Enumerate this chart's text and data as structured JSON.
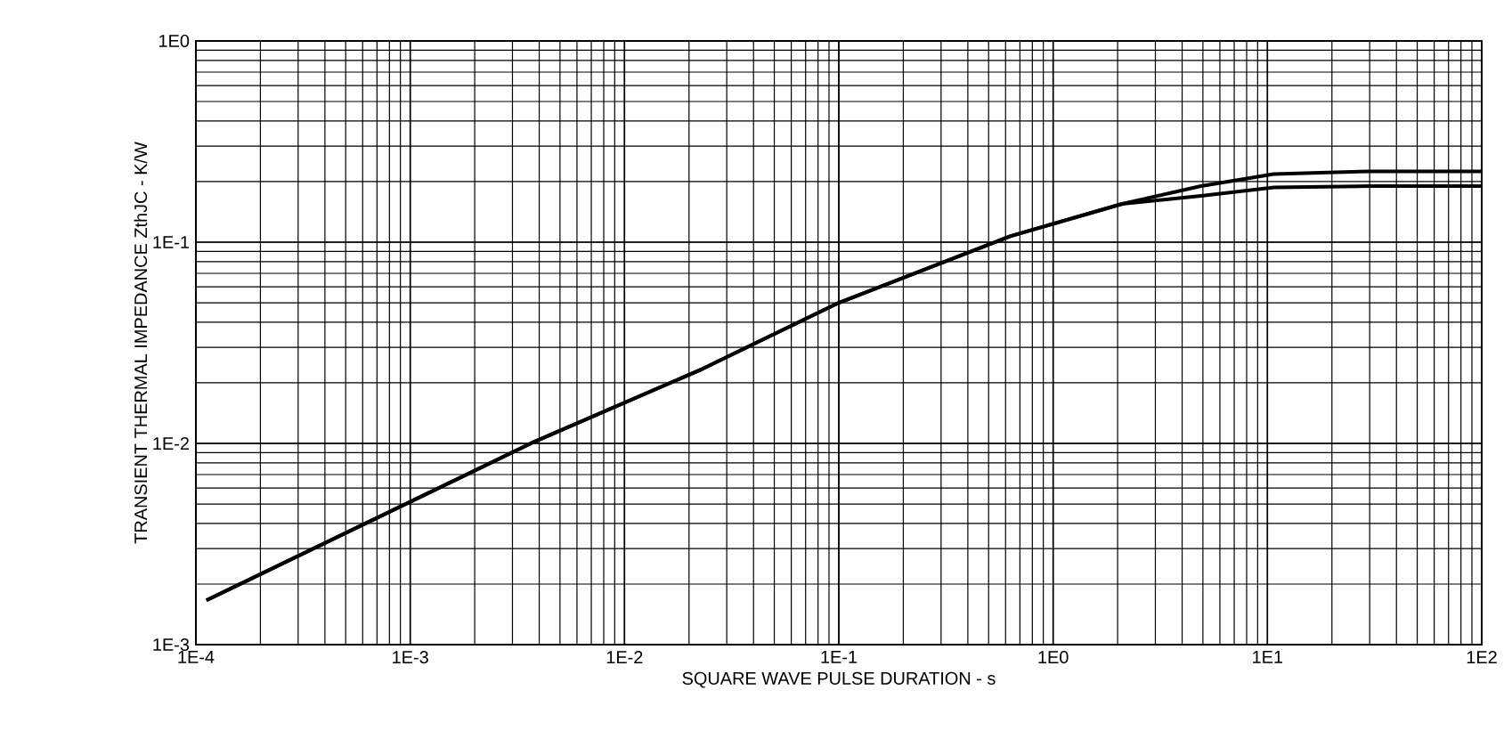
{
  "chart_data": {
    "type": "line",
    "xlabel": "SQUARE WAVE PULSE DURATION - s",
    "ylabel": "TRANSIENT THERMAL IMPEDANCE ZthJC - K/W",
    "log": "xy",
    "grid": true,
    "marker": "none",
    "line_style": "solid",
    "xlim": [
      0.0001,
      100
    ],
    "ylim": [
      0.001,
      1
    ],
    "xticks": [
      {
        "value": 0.0001,
        "label": "1E-4"
      },
      {
        "value": 0.001,
        "label": "1E-3"
      },
      {
        "value": 0.01,
        "label": "1E-2"
      },
      {
        "value": 0.1,
        "label": "1E-1"
      },
      {
        "value": 1,
        "label": "1E0"
      },
      {
        "value": 10,
        "label": "1E1"
      },
      {
        "value": 100,
        "label": "1E2"
      }
    ],
    "yticks": [
      {
        "value": 0.001,
        "label": "1E-3"
      },
      {
        "value": 0.01,
        "label": "1E-2"
      },
      {
        "value": 0.1,
        "label": "1E-1"
      },
      {
        "value": 1,
        "label": "1E0"
      }
    ],
    "series": [
      {
        "color": "#000000",
        "x": [
          0.000112,
          0.0038,
          0.023,
          0.1,
          0.63,
          2.1,
          4.9,
          10.7,
          30,
          100
        ],
        "values": [
          0.00166,
          0.0102,
          0.0234,
          0.05,
          0.107,
          0.155,
          0.19,
          0.218,
          0.225,
          0.225
        ]
      },
      {
        "color": "#000000",
        "x": [
          0.000112,
          0.0038,
          0.023,
          0.1,
          0.63,
          2.1,
          4.9,
          10.7,
          30,
          100
        ],
        "values": [
          0.00166,
          0.0102,
          0.0234,
          0.05,
          0.107,
          0.155,
          0.17,
          0.187,
          0.19,
          0.19
        ]
      }
    ]
  }
}
